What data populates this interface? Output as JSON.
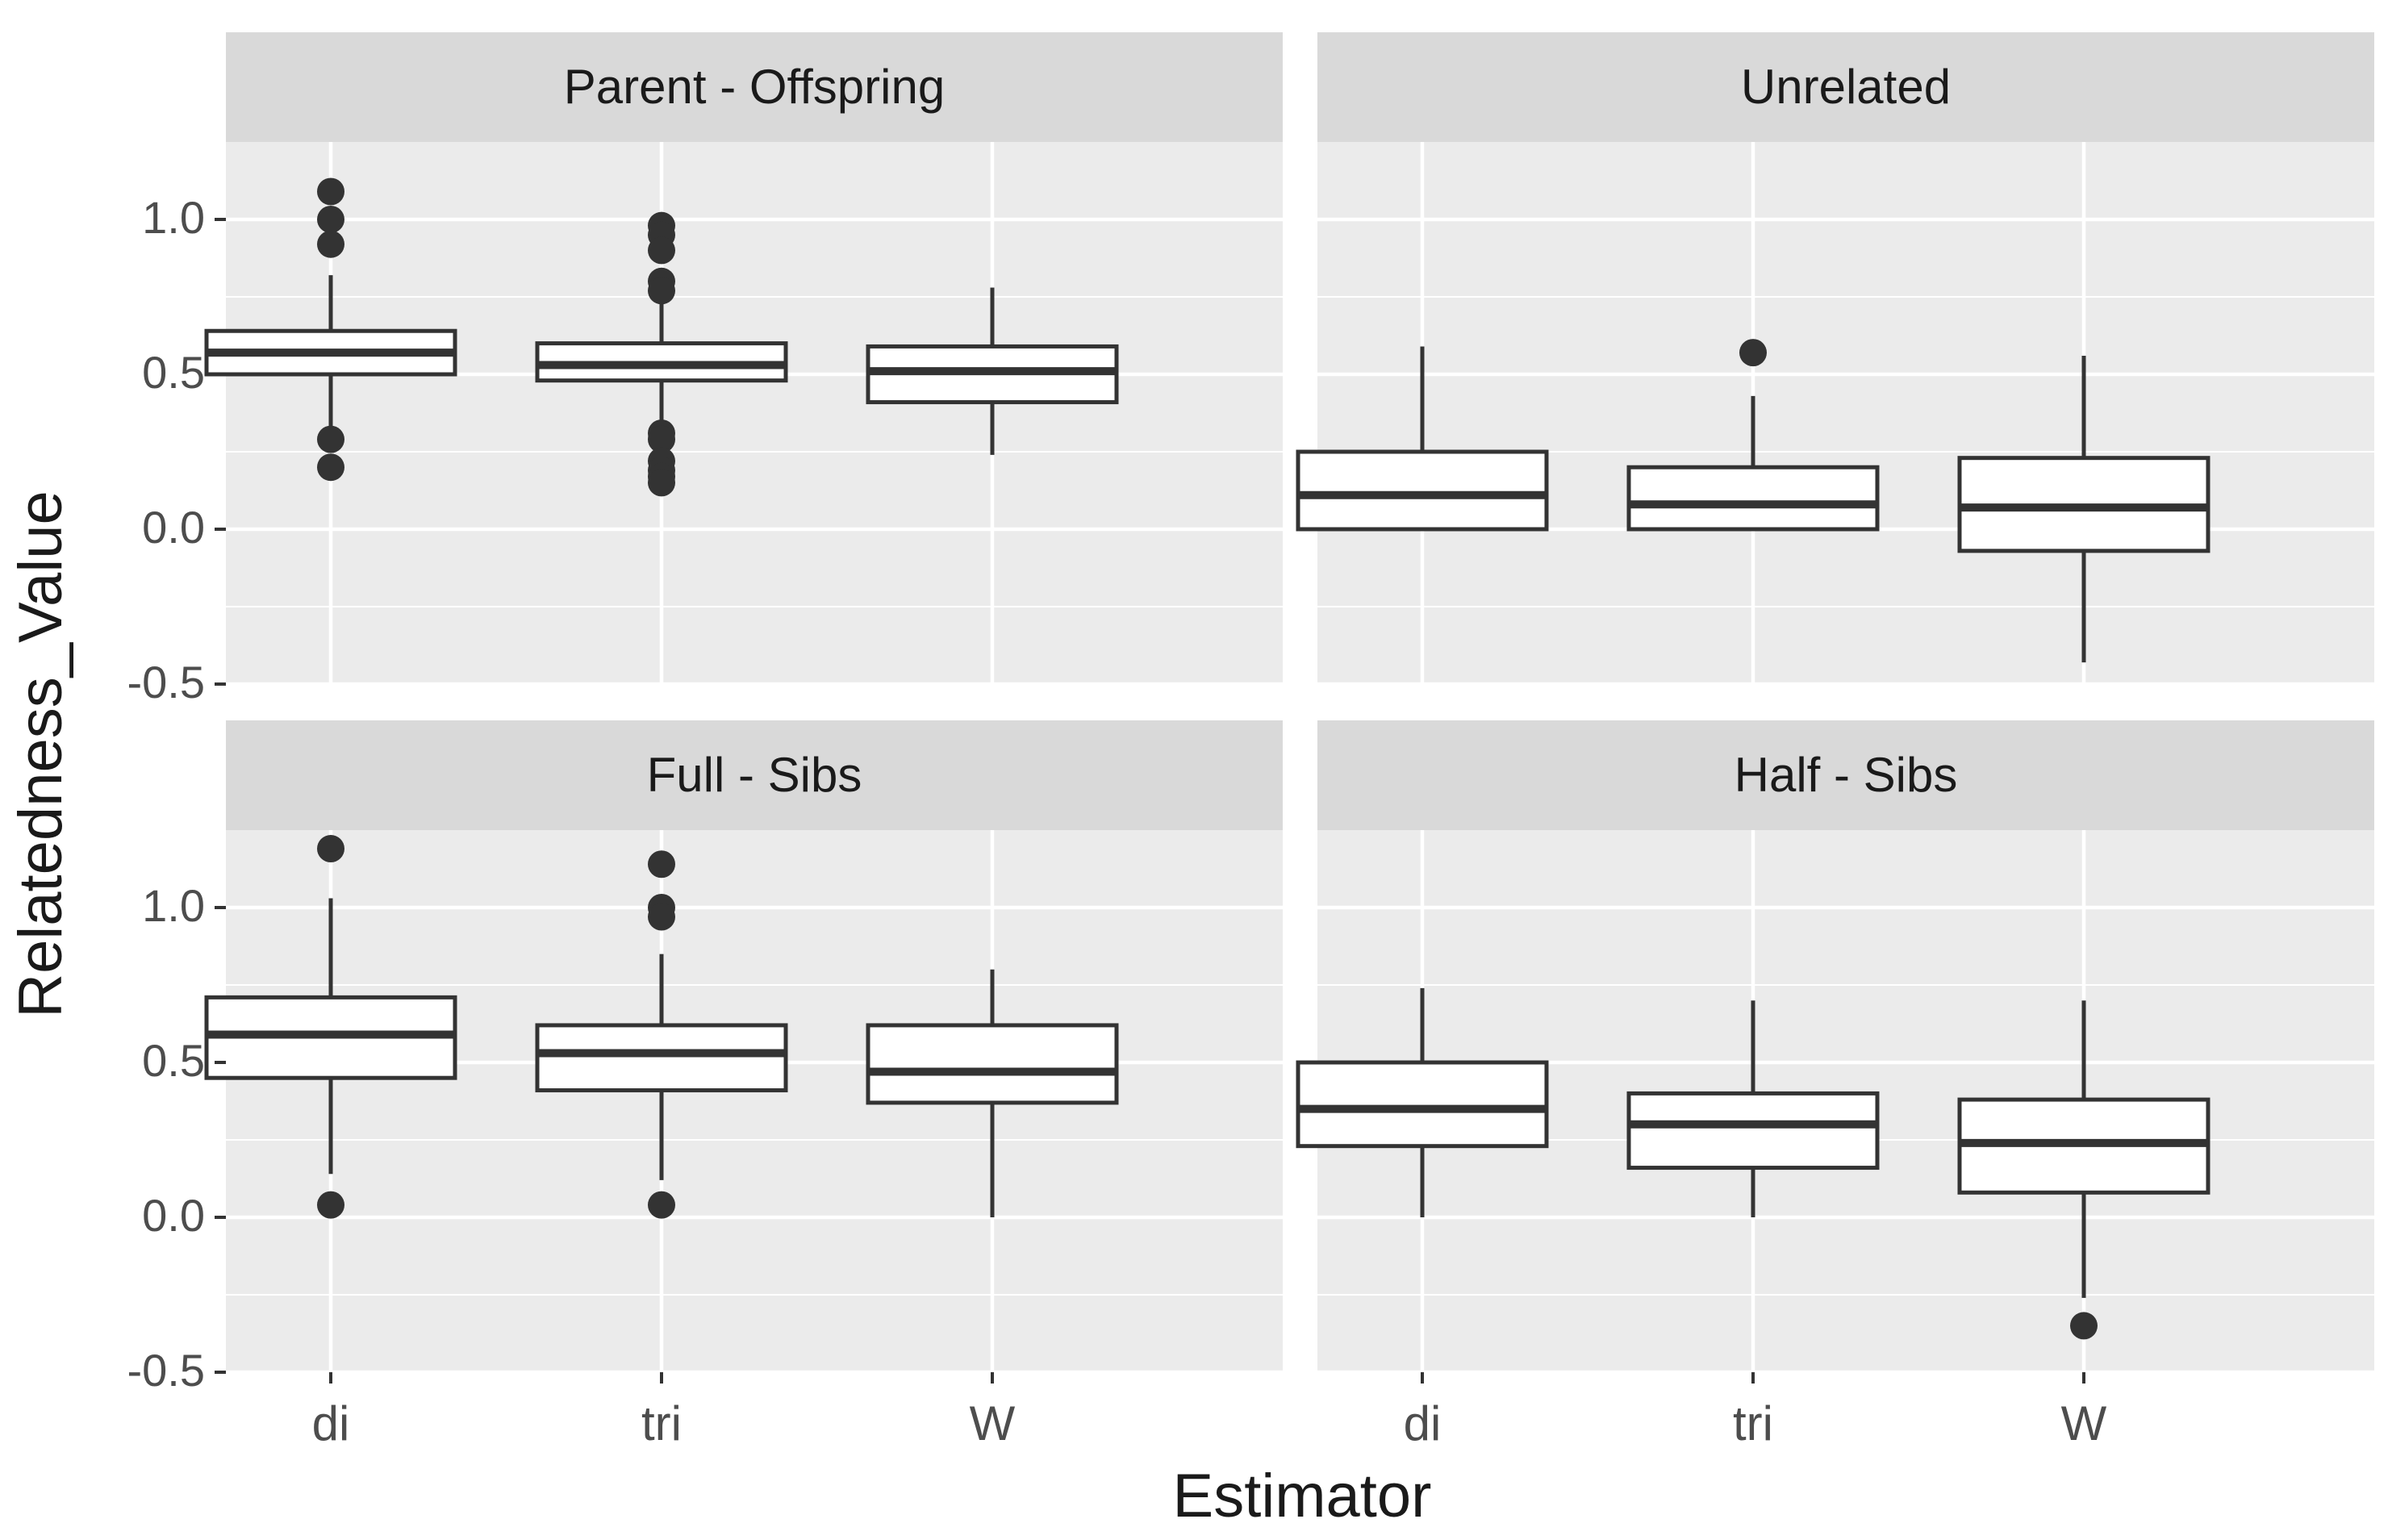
{
  "chart_data": {
    "type": "boxplot",
    "xlabel": "Estimator",
    "ylabel": "Relatedness_Value",
    "categories": [
      "di",
      "tri",
      "W"
    ],
    "ylim": [
      -0.5,
      1.25
    ],
    "yticks": [
      -0.5,
      0.0,
      0.5,
      1.0
    ],
    "ytick_labels": [
      "-0.5",
      "0.0",
      "0.5",
      "1.0"
    ],
    "colors": {
      "panel_bg": "#ebebeb",
      "strip_bg": "#d9d9d9",
      "grid": "#ffffff",
      "box_fill": "#ffffff",
      "box_line": "#333333",
      "outlier": "#333333"
    },
    "panels": [
      {
        "title": "Parent - Offspring",
        "boxes": [
          {
            "category": "di",
            "lower_whisker": 0.33,
            "q1": 0.5,
            "median": 0.57,
            "q3": 0.64,
            "upper_whisker": 0.82,
            "outliers": [
              1.09,
              1.0,
              0.92,
              0.29,
              0.2
            ]
          },
          {
            "category": "tri",
            "lower_whisker": 0.34,
            "q1": 0.48,
            "median": 0.53,
            "q3": 0.6,
            "upper_whisker": 0.74,
            "outliers": [
              0.98,
              0.95,
              0.9,
              0.8,
              0.77,
              0.31,
              0.29,
              0.22,
              0.19,
              0.17,
              0.15
            ]
          },
          {
            "category": "W",
            "lower_whisker": 0.24,
            "q1": 0.41,
            "median": 0.51,
            "q3": 0.59,
            "upper_whisker": 0.78,
            "outliers": []
          }
        ]
      },
      {
        "title": "Unrelated",
        "boxes": [
          {
            "category": "di",
            "lower_whisker": 0.0,
            "q1": 0.0,
            "median": 0.11,
            "q3": 0.25,
            "upper_whisker": 0.59,
            "outliers": []
          },
          {
            "category": "tri",
            "lower_whisker": 0.0,
            "q1": 0.0,
            "median": 0.08,
            "q3": 0.2,
            "upper_whisker": 0.43,
            "outliers": [
              0.57
            ]
          },
          {
            "category": "W",
            "lower_whisker": -0.43,
            "q1": -0.07,
            "median": 0.07,
            "q3": 0.23,
            "upper_whisker": 0.56,
            "outliers": []
          }
        ]
      },
      {
        "title": "Full - Sibs",
        "boxes": [
          {
            "category": "di",
            "lower_whisker": 0.14,
            "q1": 0.45,
            "median": 0.59,
            "q3": 0.71,
            "upper_whisker": 1.03,
            "outliers": [
              1.19,
              0.04
            ]
          },
          {
            "category": "tri",
            "lower_whisker": 0.12,
            "q1": 0.41,
            "median": 0.53,
            "q3": 0.62,
            "upper_whisker": 0.85,
            "outliers": [
              1.14,
              1.0,
              0.97,
              0.04
            ]
          },
          {
            "category": "W",
            "lower_whisker": 0.0,
            "q1": 0.37,
            "median": 0.47,
            "q3": 0.62,
            "upper_whisker": 0.8,
            "outliers": []
          }
        ]
      },
      {
        "title": "Half - Sibs",
        "boxes": [
          {
            "category": "di",
            "lower_whisker": 0.0,
            "q1": 0.23,
            "median": 0.35,
            "q3": 0.5,
            "upper_whisker": 0.74,
            "outliers": []
          },
          {
            "category": "tri",
            "lower_whisker": 0.0,
            "q1": 0.16,
            "median": 0.3,
            "q3": 0.4,
            "upper_whisker": 0.7,
            "outliers": []
          },
          {
            "category": "W",
            "lower_whisker": -0.26,
            "q1": 0.08,
            "median": 0.24,
            "q3": 0.38,
            "upper_whisker": 0.7,
            "outliers": [
              -0.35
            ]
          }
        ]
      }
    ]
  }
}
